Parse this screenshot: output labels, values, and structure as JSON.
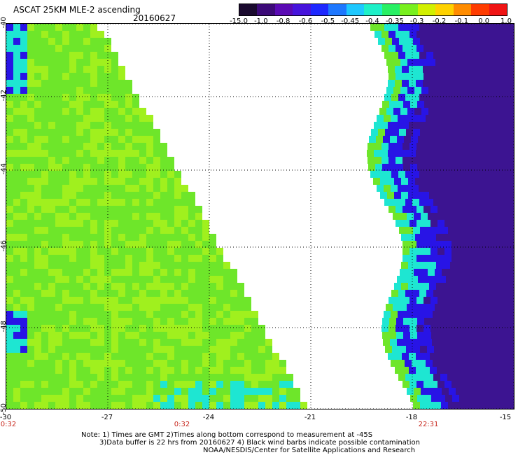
{
  "header": {
    "title": "ASCAT 25KM MLE-2 ascending",
    "date": "20160627"
  },
  "colorbar": {
    "labels": [
      "-15.0",
      "-1.0",
      "-0.8",
      "-0.6",
      "-0.5",
      "-0.45",
      "-0.4",
      "-0.35",
      "-0.3",
      "-0.2",
      "-0.1",
      "0.0",
      "1.0"
    ],
    "colors": [
      "#1a0a2e",
      "#3c0a78",
      "#5a0ab4",
      "#4614dc",
      "#1e28ff",
      "#1e78ff",
      "#1ec8ff",
      "#1ef0c8",
      "#28f064",
      "#78f01e",
      "#d2f000",
      "#ffd200",
      "#ff8c00",
      "#ff3c00",
      "#f01414"
    ]
  },
  "map": {
    "lat_labels": [
      "-40",
      "-42",
      "-44",
      "-46",
      "-48",
      "-50"
    ],
    "lon_labels": [
      "-30",
      "-27",
      "-24",
      "-21",
      "-18",
      "-15"
    ],
    "time_labels": [
      "0:32",
      "0:32",
      "22:31"
    ],
    "colors": {
      "swath_left": "#6ee62a",
      "swath_left_light": "#a0f01e",
      "swath_right": "#3c1491",
      "swath_blue": "#2814e6",
      "swath_cyan": "#1ee6d2",
      "time_label": "#c8281e"
    }
  },
  "notes": {
    "line1": "Note: 1) Times are GMT 2)Times along bottom correspond to measurement at -45S",
    "line2": "3)Data buffer is 22 hrs from 20160627 4) Black wind barbs indicate possible contamination",
    "line3": "NOAA/NESDIS/Center for Satellite Applications and Research"
  }
}
